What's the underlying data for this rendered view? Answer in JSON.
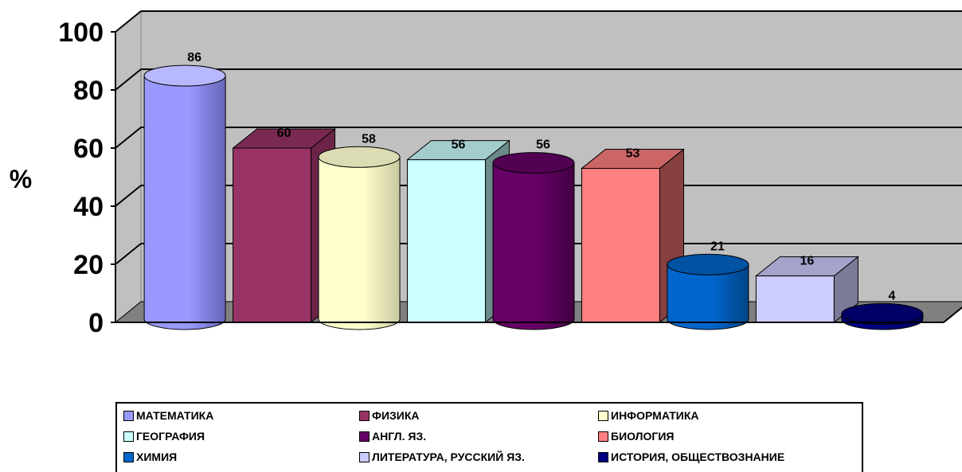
{
  "chart_data": {
    "type": "bar",
    "title": "",
    "xlabel": "",
    "ylabel": "%",
    "ylim": [
      0,
      100
    ],
    "yticks": [
      0,
      20,
      40,
      60,
      80,
      100
    ],
    "grid": true,
    "legend_position": "bottom",
    "style": "3d",
    "series": [
      {
        "name": "МАТЕМАТИКА",
        "value": 86,
        "shape": "cylinder",
        "color": "#9999FF",
        "dark": "#6666b8",
        "top": "#b8b8ff"
      },
      {
        "name": "ФИЗИКА",
        "value": 60,
        "shape": "box",
        "color": "#993366",
        "dark": "#6b2447",
        "top": "#7a2952"
      },
      {
        "name": "ИНФОРМАТИКА",
        "value": 58,
        "shape": "cylinder",
        "color": "#FFFFCC",
        "dark": "#c9c9a0",
        "top": "#dcdcb4"
      },
      {
        "name": "ГЕОГРАФИЯ",
        "value": 56,
        "shape": "box",
        "color": "#CCFFFF",
        "dark": "#6b8b8b",
        "top": "#a3cccc"
      },
      {
        "name": "АНГЛ. ЯЗ.",
        "value": 56,
        "shape": "cylinder",
        "color": "#660066",
        "dark": "#420042",
        "top": "#520052"
      },
      {
        "name": "БИОЛОГИЯ",
        "value": 53,
        "shape": "box",
        "color": "#FF8080",
        "dark": "#874040",
        "top": "#cc6666"
      },
      {
        "name": "ХИМИЯ",
        "value": 21,
        "shape": "cylinder",
        "color": "#0066CC",
        "dark": "#004488",
        "top": "#0052a3"
      },
      {
        "name": "ЛИТЕРАТУРА, РУССКИЙ ЯЗ.",
        "value": 16,
        "shape": "box",
        "color": "#CCCCFF",
        "dark": "#7a7a99",
        "top": "#a3a3cc"
      },
      {
        "name": "ИСТОРИЯ, ОБЩЕСТВОЗНАНИЕ",
        "value": 4,
        "shape": "cylinder",
        "color": "#000080",
        "dark": "#00005a",
        "top": "#000066"
      }
    ]
  }
}
